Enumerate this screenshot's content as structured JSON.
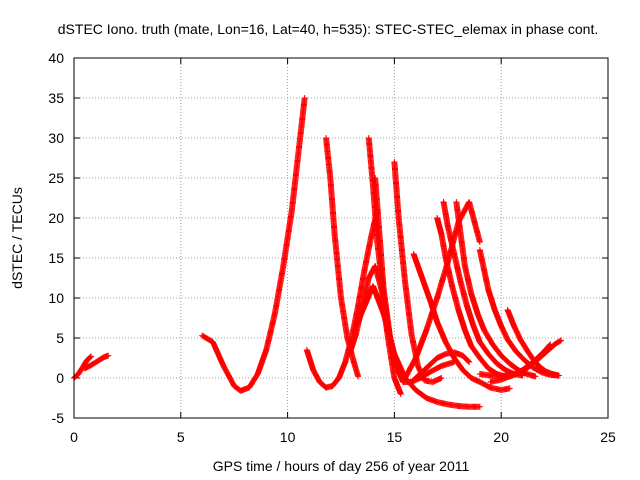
{
  "chart_data": {
    "type": "scatter",
    "title": "dSTEC Iono. truth (mate, Lon=16, Lat=40, h=535): STEC-STEC_elemax in phase cont.",
    "xlabel": "GPS time / hours of day 256 of year 2011",
    "ylabel": "dSTEC  / TECUs",
    "xlim": [
      0,
      25
    ],
    "ylim": [
      -5,
      40
    ],
    "xticks": [
      0,
      5,
      10,
      15,
      20,
      25
    ],
    "yticks": [
      -5,
      0,
      5,
      10,
      15,
      20,
      25,
      30,
      35,
      40
    ],
    "grid": true,
    "marker": "+",
    "color": "#ff0000",
    "series": [
      {
        "x": [
          0.0,
          0.2,
          0.4,
          0.6,
          0.8
        ],
        "y": [
          0.0,
          0.5,
          1.3,
          2.2,
          2.7
        ]
      },
      {
        "x": [
          0.5,
          0.8,
          1.1,
          1.4,
          1.6
        ],
        "y": [
          1.2,
          1.6,
          2.1,
          2.6,
          2.8
        ]
      },
      {
        "x": [
          6.0,
          6.5,
          7.0,
          7.5,
          7.8,
          8.2,
          8.6,
          9.0,
          9.4,
          9.8,
          10.2,
          10.5,
          10.8
        ],
        "y": [
          5.3,
          4.5,
          1.5,
          -1.0,
          -1.6,
          -1.2,
          0.5,
          3.5,
          8.0,
          14.0,
          21.0,
          28.0,
          35.0
        ]
      },
      {
        "x": [
          10.9,
          11.2,
          11.5,
          11.8,
          12.1,
          12.4,
          12.7,
          13.0,
          13.3,
          13.6,
          13.9,
          14.2
        ],
        "y": [
          3.5,
          1.0,
          -0.5,
          -1.2,
          -1.0,
          0.0,
          2.0,
          5.0,
          9.0,
          13.5,
          17.5,
          21.0
        ]
      },
      {
        "x": [
          11.8,
          12.0,
          12.2,
          12.5,
          12.8,
          13.1,
          13.3
        ],
        "y": [
          30.0,
          25.0,
          18.0,
          10.0,
          5.0,
          2.0,
          0.2
        ]
      },
      {
        "x": [
          13.8,
          14.0,
          14.2,
          14.5,
          14.8,
          15.1,
          15.3
        ],
        "y": [
          30.0,
          24.0,
          17.0,
          10.0,
          5.0,
          1.5,
          0.2
        ]
      },
      {
        "x": [
          14.1,
          14.3,
          14.5,
          14.8,
          15.1,
          15.4,
          15.8,
          16.2,
          16.7,
          17.2,
          17.8
        ],
        "y": [
          25.0,
          18.0,
          11.0,
          5.0,
          1.5,
          -0.5,
          -0.5,
          0.0,
          0.8,
          1.5,
          2.0
        ]
      },
      {
        "x": [
          12.9,
          13.2,
          13.5,
          13.8,
          14.1,
          14.4,
          14.7,
          15.0,
          15.3
        ],
        "y": [
          3.0,
          5.5,
          9.0,
          12.5,
          14.0,
          11.0,
          5.0,
          0.0,
          -2.0
        ]
      },
      {
        "x": [
          13.2,
          13.6,
          14.0,
          14.5,
          15.0,
          15.5,
          16.0,
          16.5,
          17.0,
          17.5,
          18.0,
          18.5,
          19.0
        ],
        "y": [
          6.5,
          9.0,
          11.5,
          8.0,
          3.0,
          0.0,
          -1.5,
          -2.5,
          -3.0,
          -3.3,
          -3.5,
          -3.6,
          -3.6
        ]
      },
      {
        "x": [
          15.0,
          15.2,
          15.5,
          15.8,
          16.1,
          16.4,
          16.8,
          17.2
        ],
        "y": [
          27.0,
          20.0,
          12.0,
          5.5,
          1.5,
          -0.3,
          -0.5,
          0.0
        ]
      },
      {
        "x": [
          15.9,
          16.3,
          16.7,
          17.0,
          17.4,
          17.8,
          18.2,
          18.6,
          19.0,
          19.5,
          20.0,
          20.4
        ],
        "y": [
          15.5,
          12.5,
          9.5,
          7.0,
          4.5,
          2.5,
          1.0,
          0.0,
          -0.5,
          -1.2,
          -1.5,
          -1.3
        ]
      },
      {
        "x": [
          15.5,
          16.0,
          16.5,
          17.0,
          17.5,
          18.0,
          18.5,
          19.0
        ],
        "y": [
          0.0,
          2.5,
          6.0,
          10.0,
          14.5,
          19.5,
          22.0,
          17.0
        ]
      },
      {
        "x": [
          15.8,
          16.2,
          16.6,
          17.0,
          17.4,
          17.8,
          18.2,
          18.5
        ],
        "y": [
          -0.5,
          0.5,
          1.5,
          2.5,
          3.0,
          3.2,
          2.8,
          2.0
        ]
      },
      {
        "x": [
          17.0,
          17.2,
          17.4,
          17.7,
          18.0,
          18.3,
          18.6,
          19.0,
          19.4,
          19.8,
          20.2
        ],
        "y": [
          20.0,
          18.0,
          15.0,
          11.5,
          8.5,
          6.0,
          4.0,
          2.5,
          1.2,
          0.5,
          0.2
        ]
      },
      {
        "x": [
          17.3,
          17.5,
          17.8,
          18.1,
          18.4,
          18.7,
          19.0,
          19.4,
          19.8,
          20.2,
          20.6,
          21.0
        ],
        "y": [
          22.0,
          19.0,
          15.5,
          12.0,
          9.0,
          6.5,
          4.5,
          3.0,
          1.8,
          1.0,
          0.5,
          0.3
        ]
      },
      {
        "x": [
          17.9,
          18.1,
          18.3,
          18.6,
          18.9,
          19.2,
          19.6,
          20.0,
          20.4,
          20.8,
          21.2,
          21.6
        ],
        "y": [
          22.0,
          18.0,
          14.0,
          10.5,
          8.0,
          6.0,
          4.2,
          2.8,
          1.8,
          1.0,
          0.5,
          0.2
        ]
      },
      {
        "x": [
          19.0,
          19.2,
          19.4,
          19.7,
          20.0,
          20.3,
          20.7,
          21.1,
          21.5,
          21.9,
          22.3,
          22.7
        ],
        "y": [
          16.0,
          13.5,
          11.0,
          8.5,
          6.5,
          4.8,
          3.3,
          2.2,
          1.3,
          0.7,
          0.4,
          0.3
        ]
      },
      {
        "x": [
          20.3,
          20.6,
          20.9,
          21.2,
          21.5,
          21.8,
          22.1,
          22.4,
          22.7
        ],
        "y": [
          8.5,
          6.5,
          4.8,
          3.5,
          2.3,
          1.4,
          0.8,
          0.5,
          0.3
        ]
      },
      {
        "x": [
          19.0,
          19.5,
          20.0,
          20.5,
          21.0,
          21.5,
          22.0,
          22.5,
          22.8
        ],
        "y": [
          0.5,
          0.3,
          0.2,
          0.3,
          0.8,
          1.8,
          3.0,
          4.2,
          4.7
        ]
      },
      {
        "x": [
          19.5,
          20.0,
          20.5,
          21.0,
          21.5,
          22.0,
          22.3
        ],
        "y": [
          -0.5,
          -0.2,
          0.3,
          1.0,
          2.0,
          3.3,
          4.2
        ]
      }
    ]
  }
}
